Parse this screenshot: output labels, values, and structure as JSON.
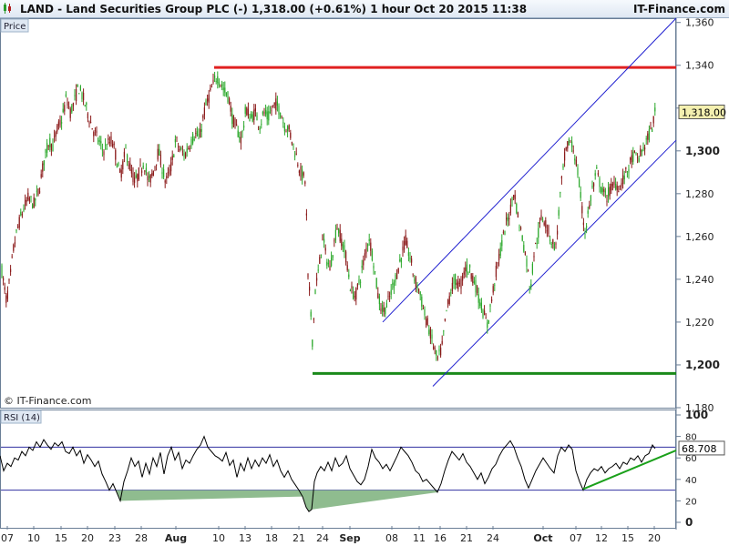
{
  "header": {
    "title": "LAND - Land Securities Group PLC (-)      1,318.00 (+0.61%)      1 hour  Oct 20 2015 11:38",
    "brand": "IT-Finance.com"
  },
  "price_panel": {
    "label": "Price",
    "copyright": "© IT-Finance.com",
    "last_price_label": "1,318.00"
  },
  "rsi_panel": {
    "label": "RSI (14)",
    "last_value_label": "68.708"
  },
  "colors": {
    "up_candle": "#2aa82a",
    "down_candle": "#8b1a1a",
    "resistance": "#e02020",
    "support": "#1a8a1a",
    "channel": "#2020d0",
    "rsi_line": "#000000",
    "rsi_trend": "#1aa01a",
    "rsi_oversold_fill": "#8fbc8f"
  },
  "chart_data": [
    {
      "type": "candlestick",
      "title": "LAND - Land Securities Group PLC (-)",
      "interval": "1 hour",
      "ylim": [
        1180,
        1362
      ],
      "y_ticks": [
        "1,180",
        "1,200",
        "1,220",
        "1,240",
        "1,260",
        "1,280",
        "1,300",
        "1,320",
        "1,340",
        "1,360"
      ],
      "x_ticks": [
        "07",
        "10",
        "15",
        "20",
        "23",
        "28",
        "Aug",
        "10",
        "13",
        "18",
        "21",
        "24",
        "Sep",
        "08",
        "11",
        "16",
        "21",
        "24",
        "Oct",
        "07",
        "12",
        "15",
        "20"
      ],
      "last_price": 1318.0,
      "price_path": [
        [
          0,
          1250
        ],
        [
          4,
          1238
        ],
        [
          7,
          1230
        ],
        [
          11,
          1240
        ],
        [
          15,
          1255
        ],
        [
          20,
          1265
        ],
        [
          25,
          1272
        ],
        [
          31,
          1278
        ],
        [
          37,
          1275
        ],
        [
          43,
          1282
        ],
        [
          48,
          1295
        ],
        [
          54,
          1305
        ],
        [
          58,
          1302
        ],
        [
          63,
          1310
        ],
        [
          68,
          1315
        ],
        [
          73,
          1325
        ],
        [
          77,
          1318
        ],
        [
          81,
          1322
        ],
        [
          86,
          1330
        ],
        [
          91,
          1325
        ],
        [
          96,
          1318
        ],
        [
          102,
          1310
        ],
        [
          108,
          1305
        ],
        [
          113,
          1300
        ],
        [
          118,
          1303
        ],
        [
          123,
          1305
        ],
        [
          128,
          1296
        ],
        [
          132,
          1288
        ],
        [
          138,
          1300
        ],
        [
          143,
          1292
        ],
        [
          148,
          1285
        ],
        [
          153,
          1290
        ],
        [
          158,
          1295
        ],
        [
          163,
          1285
        ],
        [
          168,
          1290
        ],
        [
          174,
          1300
        ],
        [
          178,
          1292
        ],
        [
          182,
          1285
        ],
        [
          188,
          1293
        ],
        [
          193,
          1305
        ],
        [
          198,
          1300
        ],
        [
          203,
          1298
        ],
        [
          208,
          1303
        ],
        [
          214,
          1308
        ],
        [
          219,
          1306
        ],
        [
          224,
          1318
        ],
        [
          229,
          1325
        ],
        [
          233,
          1330
        ],
        [
          238,
          1335
        ],
        [
          242,
          1332
        ],
        [
          246,
          1328
        ],
        [
          251,
          1325
        ],
        [
          255,
          1315
        ],
        [
          260,
          1310
        ],
        [
          265,
          1305
        ],
        [
          270,
          1320
        ],
        [
          275,
          1315
        ],
        [
          280,
          1318
        ],
        [
          285,
          1312
        ],
        [
          290,
          1318
        ],
        [
          294,
          1315
        ],
        [
          299,
          1320
        ],
        [
          303,
          1322
        ],
        [
          308,
          1318
        ],
        [
          312,
          1312
        ],
        [
          317,
          1310
        ],
        [
          321,
          1304
        ],
        [
          325,
          1298
        ],
        [
          330,
          1290
        ],
        [
          336,
          1285
        ],
        [
          337,
          1245
        ],
        [
          340,
          1232
        ],
        [
          343,
          1210
        ],
        [
          346,
          1235
        ],
        [
          350,
          1245
        ],
        [
          354,
          1260
        ],
        [
          358,
          1250
        ],
        [
          362,
          1245
        ],
        [
          366,
          1255
        ],
        [
          370,
          1265
        ],
        [
          375,
          1258
        ],
        [
          380,
          1250
        ],
        [
          385,
          1235
        ],
        [
          390,
          1232
        ],
        [
          395,
          1240
        ],
        [
          400,
          1250
        ],
        [
          405,
          1260
        ],
        [
          410,
          1248
        ],
        [
          415,
          1232
        ],
        [
          420,
          1225
        ],
        [
          425,
          1228
        ],
        [
          430,
          1235
        ],
        [
          435,
          1242
        ],
        [
          440,
          1250
        ],
        [
          445,
          1258
        ],
        [
          450,
          1250
        ],
        [
          455,
          1240
        ],
        [
          460,
          1235
        ],
        [
          465,
          1225
        ],
        [
          470,
          1218
        ],
        [
          475,
          1210
        ],
        [
          480,
          1202
        ],
        [
          485,
          1208
        ],
        [
          490,
          1225
        ],
        [
          495,
          1235
        ],
        [
          500,
          1240
        ],
        [
          505,
          1236
        ],
        [
          510,
          1245
        ],
        [
          515,
          1245
        ],
        [
          520,
          1240
        ],
        [
          525,
          1232
        ],
        [
          530,
          1225
        ],
        [
          535,
          1218
        ],
        [
          540,
          1232
        ],
        [
          545,
          1245
        ],
        [
          550,
          1255
        ],
        [
          555,
          1265
        ],
        [
          560,
          1272
        ],
        [
          564,
          1282
        ],
        [
          568,
          1270
        ],
        [
          573,
          1260
        ],
        [
          578,
          1248
        ],
        [
          582,
          1235
        ],
        [
          586,
          1252
        ],
        [
          590,
          1260
        ],
        [
          595,
          1270
        ],
        [
          600,
          1265
        ],
        [
          605,
          1258
        ],
        [
          610,
          1255
        ],
        [
          615,
          1280
        ],
        [
          620,
          1298
        ],
        [
          625,
          1305
        ],
        [
          630,
          1300
        ],
        [
          634,
          1290
        ],
        [
          638,
          1275
        ],
        [
          642,
          1262
        ],
        [
          646,
          1272
        ],
        [
          650,
          1282
        ],
        [
          655,
          1290
        ],
        [
          660,
          1282
        ],
        [
          665,
          1278
        ],
        [
          670,
          1282
        ],
        [
          675,
          1285
        ],
        [
          680,
          1283
        ],
        [
          685,
          1288
        ],
        [
          690,
          1292
        ],
        [
          695,
          1298
        ],
        [
          700,
          1296
        ],
        [
          705,
          1300
        ],
        [
          710,
          1305
        ],
        [
          715,
          1310
        ],
        [
          719,
          1318
        ]
      ],
      "lines": [
        {
          "name": "resistance",
          "x": [
            235,
            742
          ],
          "y": [
            1339,
            1339
          ]
        },
        {
          "name": "support",
          "x": [
            343,
            742
          ],
          "y": [
            1196,
            1196
          ]
        },
        {
          "name": "channel-upper",
          "x": [
            420,
            742
          ],
          "y": [
            1220,
            1362
          ]
        },
        {
          "name": "channel-lower",
          "x": [
            475,
            742
          ],
          "y": [
            1190,
            1305
          ]
        }
      ]
    },
    {
      "type": "line",
      "title": "RSI (14)",
      "ylim": [
        0,
        100
      ],
      "y_ticks": [
        "0",
        "20",
        "40",
        "60",
        "80",
        "100"
      ],
      "levels": [
        30,
        70
      ],
      "last_value": 68.708,
      "values": [
        [
          0,
          62
        ],
        [
          4,
          48
        ],
        [
          8,
          55
        ],
        [
          12,
          52
        ],
        [
          16,
          60
        ],
        [
          20,
          58
        ],
        [
          24,
          66
        ],
        [
          28,
          62
        ],
        [
          32,
          70
        ],
        [
          36,
          67
        ],
        [
          40,
          75
        ],
        [
          44,
          70
        ],
        [
          48,
          77
        ],
        [
          52,
          72
        ],
        [
          56,
          68
        ],
        [
          60,
          74
        ],
        [
          64,
          71
        ],
        [
          68,
          75
        ],
        [
          72,
          66
        ],
        [
          76,
          64
        ],
        [
          80,
          70
        ],
        [
          84,
          62
        ],
        [
          88,
          67
        ],
        [
          92,
          55
        ],
        [
          96,
          63
        ],
        [
          100,
          58
        ],
        [
          104,
          52
        ],
        [
          108,
          57
        ],
        [
          112,
          45
        ],
        [
          116,
          38
        ],
        [
          120,
          30
        ],
        [
          124,
          36
        ],
        [
          128,
          28
        ],
        [
          132,
          20
        ],
        [
          136,
          38
        ],
        [
          140,
          48
        ],
        [
          144,
          60
        ],
        [
          148,
          52
        ],
        [
          152,
          57
        ],
        [
          156,
          42
        ],
        [
          160,
          55
        ],
        [
          164,
          45
        ],
        [
          168,
          60
        ],
        [
          172,
          52
        ],
        [
          176,
          65
        ],
        [
          180,
          45
        ],
        [
          184,
          62
        ],
        [
          188,
          70
        ],
        [
          192,
          58
        ],
        [
          196,
          65
        ],
        [
          200,
          50
        ],
        [
          204,
          58
        ],
        [
          208,
          55
        ],
        [
          212,
          62
        ],
        [
          216,
          68
        ],
        [
          220,
          72
        ],
        [
          224,
          80
        ],
        [
          228,
          70
        ],
        [
          232,
          66
        ],
        [
          236,
          62
        ],
        [
          240,
          60
        ],
        [
          244,
          57
        ],
        [
          248,
          65
        ],
        [
          252,
          53
        ],
        [
          256,
          58
        ],
        [
          260,
          42
        ],
        [
          264,
          55
        ],
        [
          268,
          48
        ],
        [
          272,
          60
        ],
        [
          276,
          50
        ],
        [
          280,
          58
        ],
        [
          284,
          52
        ],
        [
          288,
          60
        ],
        [
          292,
          55
        ],
        [
          296,
          63
        ],
        [
          300,
          52
        ],
        [
          304,
          58
        ],
        [
          308,
          48
        ],
        [
          312,
          42
        ],
        [
          316,
          48
        ],
        [
          320,
          40
        ],
        [
          324,
          35
        ],
        [
          328,
          30
        ],
        [
          332,
          24
        ],
        [
          336,
          14
        ],
        [
          339,
          10
        ],
        [
          342,
          12
        ],
        [
          345,
          38
        ],
        [
          348,
          46
        ],
        [
          352,
          52
        ],
        [
          356,
          48
        ],
        [
          360,
          56
        ],
        [
          364,
          48
        ],
        [
          368,
          60
        ],
        [
          372,
          52
        ],
        [
          376,
          55
        ],
        [
          380,
          62
        ],
        [
          384,
          50
        ],
        [
          388,
          44
        ],
        [
          392,
          38
        ],
        [
          396,
          35
        ],
        [
          400,
          40
        ],
        [
          404,
          52
        ],
        [
          408,
          68
        ],
        [
          412,
          60
        ],
        [
          416,
          56
        ],
        [
          420,
          50
        ],
        [
          424,
          54
        ],
        [
          428,
          48
        ],
        [
          432,
          55
        ],
        [
          436,
          62
        ],
        [
          440,
          70
        ],
        [
          444,
          66
        ],
        [
          448,
          62
        ],
        [
          452,
          56
        ],
        [
          456,
          48
        ],
        [
          460,
          45
        ],
        [
          464,
          38
        ],
        [
          468,
          40
        ],
        [
          472,
          36
        ],
        [
          476,
          32
        ],
        [
          480,
          28
        ],
        [
          484,
          36
        ],
        [
          488,
          48
        ],
        [
          492,
          58
        ],
        [
          496,
          66
        ],
        [
          500,
          62
        ],
        [
          504,
          58
        ],
        [
          508,
          64
        ],
        [
          512,
          56
        ],
        [
          516,
          52
        ],
        [
          520,
          46
        ],
        [
          524,
          40
        ],
        [
          528,
          46
        ],
        [
          532,
          36
        ],
        [
          536,
          42
        ],
        [
          540,
          50
        ],
        [
          544,
          54
        ],
        [
          548,
          62
        ],
        [
          552,
          68
        ],
        [
          556,
          72
        ],
        [
          560,
          76
        ],
        [
          564,
          70
        ],
        [
          568,
          60
        ],
        [
          572,
          52
        ],
        [
          576,
          40
        ],
        [
          580,
          32
        ],
        [
          584,
          40
        ],
        [
          588,
          48
        ],
        [
          592,
          54
        ],
        [
          596,
          60
        ],
        [
          600,
          55
        ],
        [
          604,
          50
        ],
        [
          608,
          46
        ],
        [
          612,
          62
        ],
        [
          616,
          70
        ],
        [
          620,
          66
        ],
        [
          624,
          72
        ],
        [
          628,
          68
        ],
        [
          632,
          48
        ],
        [
          636,
          38
        ],
        [
          640,
          30
        ],
        [
          644,
          40
        ],
        [
          648,
          46
        ],
        [
          652,
          50
        ],
        [
          656,
          48
        ],
        [
          660,
          52
        ],
        [
          664,
          46
        ],
        [
          668,
          50
        ],
        [
          672,
          52
        ],
        [
          676,
          55
        ],
        [
          680,
          50
        ],
        [
          684,
          56
        ],
        [
          688,
          54
        ],
        [
          692,
          60
        ],
        [
          696,
          58
        ],
        [
          700,
          62
        ],
        [
          704,
          56
        ],
        [
          708,
          62
        ],
        [
          712,
          64
        ],
        [
          716,
          72
        ],
        [
          719,
          68.7
        ]
      ],
      "trend_line": {
        "x": [
          640,
          742
        ],
        "y": [
          31,
          67
        ]
      }
    }
  ]
}
